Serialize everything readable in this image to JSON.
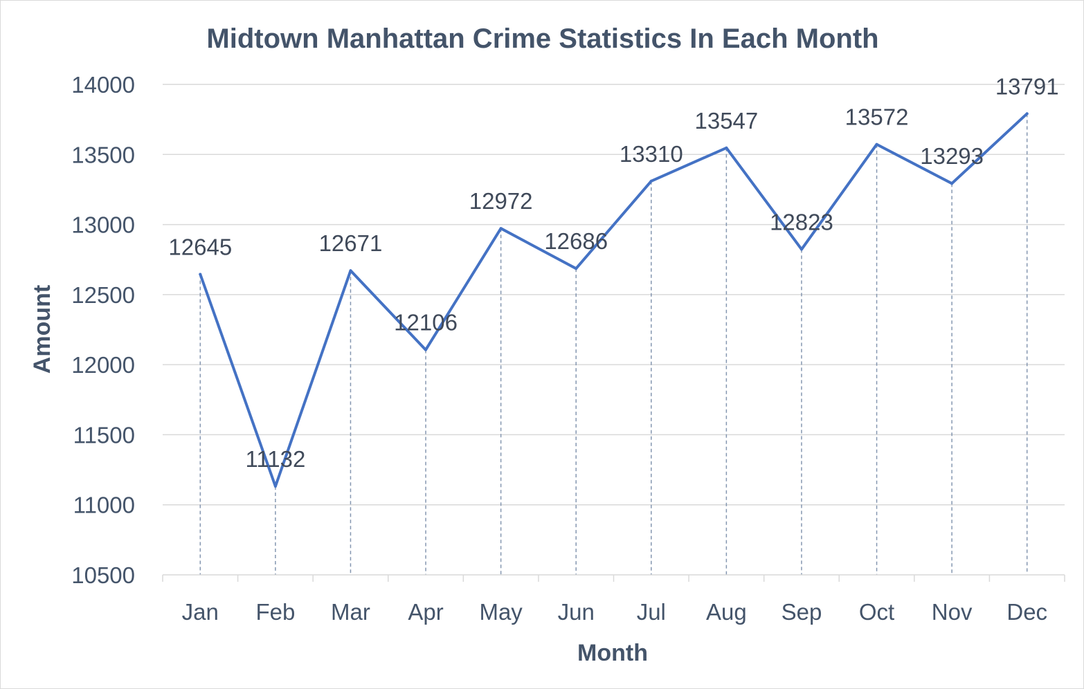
{
  "chart_data": {
    "type": "line",
    "title": "Midtown Manhattan Crime Statistics In Each Month",
    "xlabel": "Month",
    "ylabel": "Amount",
    "categories": [
      "Jan",
      "Feb",
      "Mar",
      "Apr",
      "May",
      "Jun",
      "Jul",
      "Aug",
      "Sep",
      "Oct",
      "Nov",
      "Dec"
    ],
    "values": [
      12645,
      11132,
      12671,
      12106,
      12972,
      12686,
      13310,
      13547,
      12823,
      13572,
      13293,
      13791
    ],
    "ylim": [
      10500,
      14000
    ],
    "yticks": [
      "10500",
      "11000",
      "11500",
      "12000",
      "12500",
      "13000",
      "13500",
      "14000"
    ],
    "grid": true,
    "drop_lines": true,
    "data_labels": true,
    "legend": "none",
    "colors": {
      "line": "#4472c4",
      "text": "#44546a",
      "grid": "#d9d9d9",
      "drop_line": "#8496b0"
    }
  }
}
